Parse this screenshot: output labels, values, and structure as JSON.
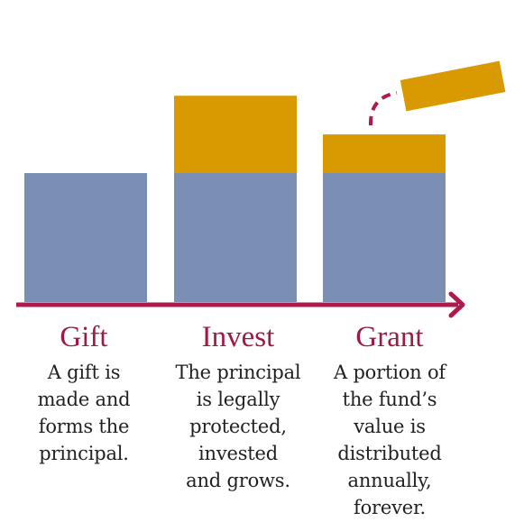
{
  "colors": {
    "principal": "#7b8fb5",
    "growth": "#d89a00",
    "axis": "#b01a4b",
    "heading": "#a01943",
    "text": "#231f20"
  },
  "arrow_icon": "arrow-right-icon",
  "steps": [
    {
      "heading": "Gift",
      "description": "A gift is\nmade and\nforms the\nprincipal.",
      "principal": 1,
      "growth": 0
    },
    {
      "heading": "Invest",
      "description": "The principal\nis legally\nprotected,\ninvested\nand grows.",
      "principal": 1,
      "growth": 0.6
    },
    {
      "heading": "Grant",
      "description": "A portion of\nthe fund’s\nvalue is\ndistributed\nannually,\nforever.",
      "principal": 1,
      "growth": 0.3
    }
  ],
  "distribution": {
    "portion": 0.3,
    "connector": "dashed-curve"
  }
}
